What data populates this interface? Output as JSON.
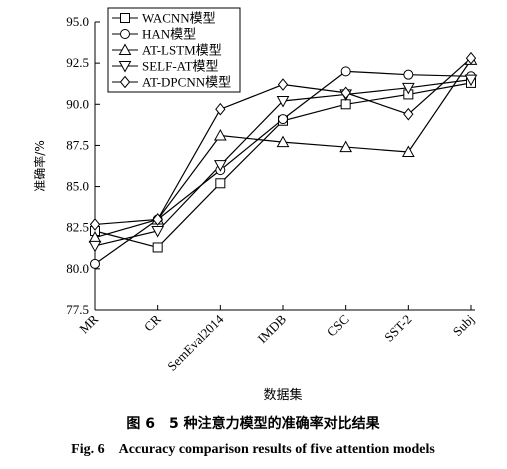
{
  "chart_data": {
    "type": "line",
    "x_label": "数据集",
    "y_label": "准确率/%",
    "caption_cn": "图 6　5 种注意力模型的准确率对比结果",
    "caption_en": "Fig. 6　Accuracy comparison results of five attention models",
    "categories": [
      "MR",
      "CR",
      "SemEval2014",
      "IMDB",
      "CSC",
      "SST-2",
      "Subj"
    ],
    "ylim": [
      77.5,
      95.0
    ],
    "yticks": [
      {
        "value": 77.5,
        "label": "77.5"
      },
      {
        "value": 80,
        "label": "80.0"
      },
      {
        "value": 82.5,
        "label": "82.5"
      },
      {
        "value": 85,
        "label": "85.0"
      },
      {
        "value": 87.5,
        "label": "87.5"
      },
      {
        "value": 90,
        "label": "90.0"
      },
      {
        "value": 92.5,
        "label": "92.5"
      },
      {
        "value": 95,
        "label": "95.0"
      }
    ],
    "legend": "upper left",
    "series": [
      {
        "name": "WACNN模型",
        "marker": "square",
        "color": "#000000",
        "values": [
          82.3,
          81.3,
          85.2,
          89.0,
          90.0,
          90.6,
          91.3
        ]
      },
      {
        "name": "HAN模型",
        "marker": "circle",
        "color": "#000000",
        "values": [
          80.3,
          83.0,
          86.0,
          89.1,
          92.0,
          91.8,
          91.7
        ]
      },
      {
        "name": "AT-LSTM模型",
        "marker": "triangle",
        "color": "#000000",
        "values": [
          81.9,
          83.0,
          88.1,
          87.7,
          87.4,
          87.1,
          92.7
        ]
      },
      {
        "name": "SELF-AT模型",
        "marker": "triangle-down",
        "color": "#000000",
        "values": [
          81.4,
          82.3,
          86.3,
          90.2,
          90.6,
          91.0,
          91.5
        ]
      },
      {
        "name": "AT-DPCNN模型",
        "marker": "diamond",
        "color": "#000000",
        "values": [
          82.7,
          83.0,
          89.7,
          91.2,
          90.7,
          89.4,
          92.8
        ]
      }
    ]
  }
}
